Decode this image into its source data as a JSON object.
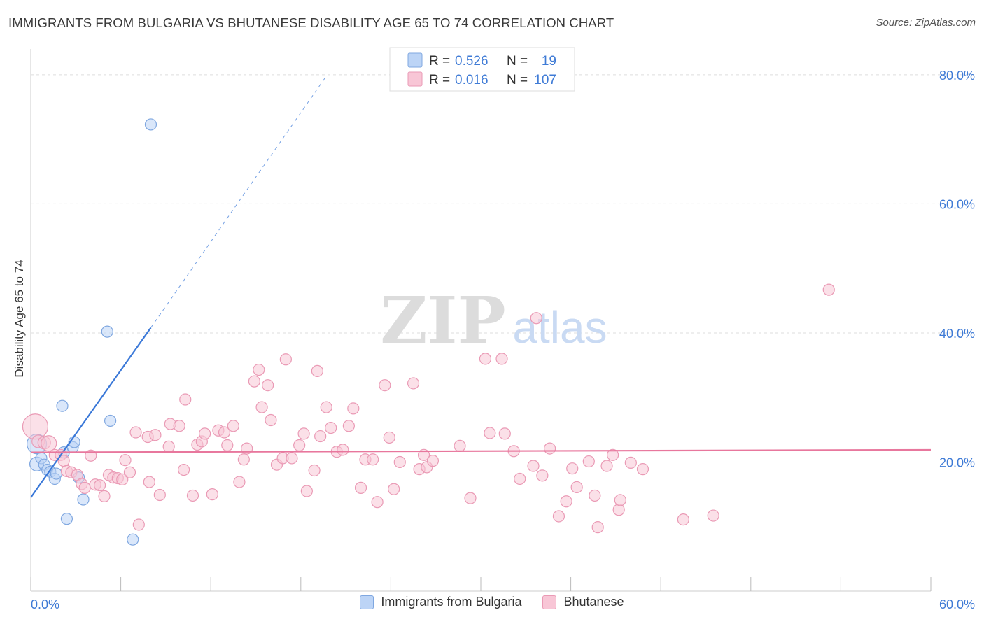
{
  "title": "IMMIGRANTS FROM BULGARIA VS BHUTANESE DISABILITY AGE 65 TO 74 CORRELATION CHART",
  "source": "Source: ZipAtlas.com",
  "watermark": {
    "zip": "ZIP",
    "atlas": "atlas"
  },
  "colors": {
    "blue": "#3a78d8",
    "blue_fill": "#bcd4f6",
    "blue_stroke": "#7fa7e0",
    "pink": "#e8779d",
    "pink_fill": "#f8c6d6",
    "pink_stroke": "#ea9ab5",
    "axis_label": "#3f7bd6",
    "grid": "#dddddd"
  },
  "stats_legend": [
    {
      "r_label": "R = ",
      "r_value": "0.526",
      "n_label": "N = ",
      "n_value": "19",
      "color": "blue"
    },
    {
      "r_label": "R = ",
      "r_value": "0.016",
      "n_label": "N = ",
      "n_value": "107",
      "color": "pink"
    }
  ],
  "chart_data": {
    "type": "scatter",
    "title": "IMMIGRANTS FROM BULGARIA VS BHUTANESE DISABILITY AGE 65 TO 74 CORRELATION CHART",
    "xlabel": "",
    "ylabel": "Disability Age 65 to 74",
    "xlim": [
      0,
      60
    ],
    "ylim": [
      0,
      84
    ],
    "x_tick_labels": [
      "0.0%",
      "60.0%"
    ],
    "y_ticks": [
      20,
      40,
      60,
      80
    ],
    "y_tick_labels": [
      "20.0%",
      "40.0%",
      "60.0%",
      "80.0%"
    ],
    "grid": true,
    "legend_position": "bottom",
    "series": [
      {
        "name": "Immigrants from Bulgaria",
        "color": "blue",
        "trend": {
          "x1": 0,
          "y1": 14.5,
          "x2": 8.0,
          "y2": 40.8,
          "dash_to_x": 19.7,
          "dash_to_y": 79.8
        },
        "points": [
          [
            0.4,
            22.8
          ],
          [
            0.4,
            19.7
          ],
          [
            0.7,
            20.6
          ],
          [
            0.9,
            19.6
          ],
          [
            1.1,
            18.8
          ],
          [
            1.3,
            18.5
          ],
          [
            1.6,
            17.4
          ],
          [
            1.7,
            18.2
          ],
          [
            2.1,
            28.7
          ],
          [
            2.2,
            21.5
          ],
          [
            2.4,
            11.2
          ],
          [
            2.8,
            22.3
          ],
          [
            2.9,
            23.1
          ],
          [
            3.2,
            17.6
          ],
          [
            3.5,
            14.2
          ],
          [
            5.1,
            40.2
          ],
          [
            5.3,
            26.4
          ],
          [
            6.8,
            8.0
          ],
          [
            8.0,
            72.3
          ]
        ],
        "sizes": [
          14,
          10,
          8,
          8,
          8,
          8,
          8,
          8,
          8,
          8,
          8,
          8,
          8,
          8,
          8,
          8,
          8,
          8,
          8
        ]
      },
      {
        "name": "Bhutanese",
        "color": "pink",
        "trend": {
          "x1": 0,
          "y1": 21.5,
          "x2": 60,
          "y2": 21.9
        },
        "points": [
          [
            0.3,
            25.5
          ],
          [
            0.5,
            23.2
          ],
          [
            0.9,
            23.0
          ],
          [
            1.2,
            22.9
          ],
          [
            1.6,
            21.1
          ],
          [
            2.0,
            21.1
          ],
          [
            2.2,
            20.2
          ],
          [
            2.4,
            18.6
          ],
          [
            2.7,
            18.4
          ],
          [
            3.1,
            18.0
          ],
          [
            3.4,
            16.6
          ],
          [
            3.6,
            16.0
          ],
          [
            4.0,
            21.0
          ],
          [
            4.3,
            16.5
          ],
          [
            4.6,
            16.4
          ],
          [
            4.9,
            14.7
          ],
          [
            5.2,
            18.0
          ],
          [
            5.5,
            17.6
          ],
          [
            5.8,
            17.5
          ],
          [
            6.1,
            17.3
          ],
          [
            6.3,
            20.3
          ],
          [
            6.6,
            18.4
          ],
          [
            7.0,
            24.6
          ],
          [
            7.2,
            10.3
          ],
          [
            7.8,
            23.9
          ],
          [
            7.9,
            16.9
          ],
          [
            8.3,
            24.2
          ],
          [
            8.6,
            14.9
          ],
          [
            9.2,
            22.4
          ],
          [
            9.3,
            25.9
          ],
          [
            9.9,
            25.6
          ],
          [
            10.2,
            18.8
          ],
          [
            10.3,
            29.7
          ],
          [
            10.8,
            14.8
          ],
          [
            11.1,
            22.7
          ],
          [
            11.4,
            23.2
          ],
          [
            11.6,
            24.4
          ],
          [
            12.1,
            15.0
          ],
          [
            12.5,
            24.9
          ],
          [
            12.9,
            24.6
          ],
          [
            13.1,
            22.6
          ],
          [
            13.5,
            25.6
          ],
          [
            13.9,
            16.9
          ],
          [
            14.2,
            20.4
          ],
          [
            14.4,
            22.1
          ],
          [
            14.9,
            32.5
          ],
          [
            15.2,
            34.3
          ],
          [
            15.4,
            28.5
          ],
          [
            15.8,
            31.9
          ],
          [
            16.0,
            26.5
          ],
          [
            16.4,
            19.6
          ],
          [
            16.8,
            20.6
          ],
          [
            17.0,
            35.9
          ],
          [
            17.4,
            20.6
          ],
          [
            17.9,
            22.6
          ],
          [
            18.2,
            24.4
          ],
          [
            18.4,
            15.5
          ],
          [
            18.9,
            18.7
          ],
          [
            19.1,
            34.1
          ],
          [
            19.3,
            24.0
          ],
          [
            19.7,
            28.5
          ],
          [
            20.0,
            25.3
          ],
          [
            20.4,
            21.6
          ],
          [
            20.8,
            21.9
          ],
          [
            21.2,
            25.6
          ],
          [
            21.5,
            28.3
          ],
          [
            22.0,
            16.0
          ],
          [
            22.3,
            20.4
          ],
          [
            22.8,
            20.4
          ],
          [
            23.1,
            13.8
          ],
          [
            23.6,
            31.9
          ],
          [
            23.9,
            23.8
          ],
          [
            24.2,
            15.8
          ],
          [
            24.6,
            20.0
          ],
          [
            25.5,
            32.2
          ],
          [
            25.9,
            18.9
          ],
          [
            26.2,
            21.1
          ],
          [
            26.4,
            19.2
          ],
          [
            26.8,
            20.2
          ],
          [
            28.6,
            22.5
          ],
          [
            29.3,
            14.4
          ],
          [
            30.3,
            36.0
          ],
          [
            30.6,
            24.5
          ],
          [
            31.4,
            36.0
          ],
          [
            31.6,
            24.4
          ],
          [
            32.2,
            21.7
          ],
          [
            32.6,
            17.4
          ],
          [
            33.5,
            19.4
          ],
          [
            33.7,
            42.3
          ],
          [
            34.1,
            17.9
          ],
          [
            34.6,
            22.1
          ],
          [
            35.2,
            11.6
          ],
          [
            35.7,
            13.9
          ],
          [
            36.1,
            19.0
          ],
          [
            36.4,
            16.1
          ],
          [
            37.2,
            20.1
          ],
          [
            37.6,
            14.8
          ],
          [
            37.8,
            9.9
          ],
          [
            38.4,
            19.4
          ],
          [
            38.8,
            21.1
          ],
          [
            39.2,
            12.6
          ],
          [
            39.3,
            14.1
          ],
          [
            40.0,
            19.9
          ],
          [
            40.8,
            18.9
          ],
          [
            43.5,
            11.1
          ],
          [
            45.5,
            11.7
          ],
          [
            53.2,
            46.7
          ]
        ],
        "sizes": [
          18,
          9,
          9,
          11,
          8,
          8,
          8,
          8,
          8,
          8,
          8,
          8,
          8,
          8,
          8,
          8,
          8,
          8,
          8,
          8,
          8,
          8,
          8,
          8,
          8,
          8,
          8,
          8,
          8,
          8,
          8,
          8,
          8,
          8,
          8,
          8,
          8,
          8,
          8,
          8,
          8,
          8,
          8,
          8,
          8,
          8,
          8,
          8,
          8,
          8,
          8,
          8,
          8,
          8,
          8,
          8,
          8,
          8,
          8,
          8,
          8,
          8,
          8,
          8,
          8,
          8,
          8,
          8,
          8,
          8,
          8,
          8,
          8,
          8,
          8,
          8,
          8,
          8,
          8,
          8,
          8,
          8,
          8,
          8,
          8,
          8,
          8,
          8,
          8,
          8,
          8,
          8,
          8,
          8,
          8,
          8,
          8,
          8,
          8,
          8,
          8,
          8,
          8,
          8,
          8,
          8,
          8
        ]
      }
    ]
  }
}
